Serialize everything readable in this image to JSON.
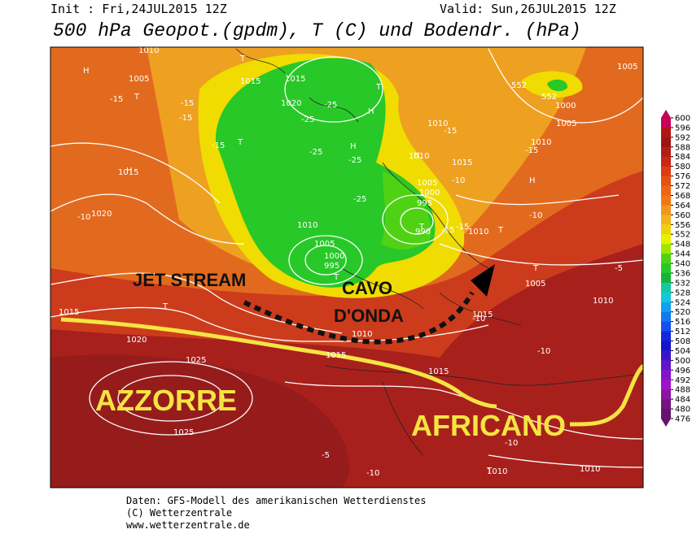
{
  "header": {
    "init": "Init : Fri,24JUL2015 12Z",
    "valid": "Valid: Sun,26JUL2015 12Z",
    "title": "500 hPa Geopot.(gpdm), T (C) und Bodendr. (hPa)"
  },
  "annotations": {
    "jet_stream": "JET STREAM",
    "cavo_line1": "CAVO",
    "cavo_line2": "D'ONDA",
    "azzorre": "AZZORRE",
    "africano": "AFRICANO"
  },
  "map": {
    "labels": [
      "H",
      "1005",
      "T",
      "-15",
      "1010",
      "-15",
      "-15",
      "1015",
      "-10",
      "1020",
      "H",
      "T",
      "-15",
      "1015",
      "T",
      "1015",
      "-25",
      "-25",
      "-25",
      "1020",
      "1010",
      "1005",
      "1000",
      "995",
      "T",
      "H",
      "-25",
      "-25",
      "1010",
      "1005",
      "1000",
      "995",
      "990",
      "T",
      "-15",
      "1010",
      "1015",
      "-15",
      "H",
      "-10",
      "1010",
      "H",
      "-15",
      "1005",
      "T",
      "-10",
      "T",
      "1005",
      "-5",
      "-10",
      "1010",
      "1015",
      "1015",
      "1010",
      "T",
      "1020",
      "1025",
      "1025",
      "1015",
      "-5",
      "-10",
      "1010",
      "-10",
      "T",
      "1010",
      "-15",
      "552",
      "552",
      "1000",
      "1005",
      "1010",
      "T",
      "H",
      "-10",
      "1015"
    ]
  },
  "colorbar": {
    "labels": [
      600,
      596,
      592,
      588,
      584,
      580,
      576,
      572,
      568,
      564,
      560,
      556,
      552,
      548,
      544,
      540,
      536,
      532,
      528,
      524,
      520,
      516,
      512,
      508,
      504,
      500,
      496,
      492,
      488,
      484,
      480,
      476
    ],
    "colors": [
      "#c8005a",
      "#b41414",
      "#a01414",
      "#b41e14",
      "#c82814",
      "#dc3c14",
      "#e65014",
      "#f06414",
      "#f07814",
      "#f0961e",
      "#f0b41e",
      "#f0d20a",
      "#e6f000",
      "#a0e600",
      "#50d214",
      "#28c828",
      "#14b43c",
      "#14c8a0",
      "#14c8dc",
      "#14a0f0",
      "#1478f0",
      "#1450f0",
      "#1428dc",
      "#1414c8",
      "#3c14c8",
      "#6414c8",
      "#8214c8",
      "#a014c8",
      "#8c14a0",
      "#781482",
      "#64146e"
    ]
  },
  "footer": {
    "line1": "Daten: GFS-Modell des amerikanischen Wetterdienstes",
    "line2": "(C) Wetterzentrale",
    "line3": "www.wetterzentrale.de"
  }
}
